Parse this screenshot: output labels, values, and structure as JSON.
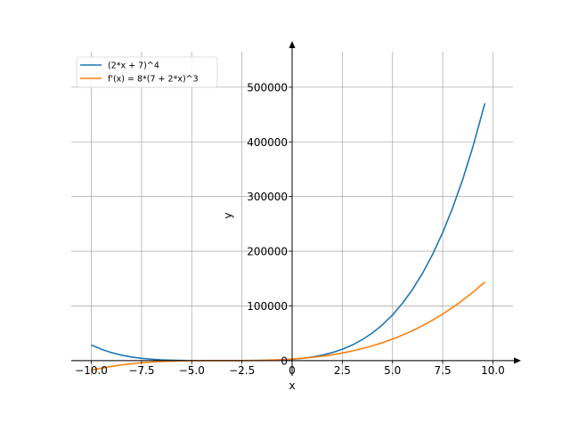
{
  "chart_data": {
    "type": "line",
    "xlabel": "x",
    "ylabel": "y",
    "xlim": [
      -11,
      11
    ],
    "ylim": [
      -28000,
      565000
    ],
    "grid": true,
    "legend_position": "top-left",
    "x_ticks": [
      -10,
      -7.5,
      -5,
      -2.5,
      0,
      2.5,
      5,
      7.5,
      10
    ],
    "x_tick_labels": [
      "−10.0",
      "−7.5",
      "−5.0",
      "−2.5",
      "0",
      "2.5",
      "5.0",
      "7.5",
      "10.0"
    ],
    "y_ticks": [
      0,
      100000,
      200000,
      300000,
      400000,
      500000
    ],
    "y_tick_labels": [
      "0",
      "100000",
      "200000",
      "300000",
      "400000",
      "500000"
    ],
    "series": [
      {
        "name": "(2*x + 7)^4",
        "color": "#1f77b4",
        "expression": "(2*x + 7)^4",
        "x": [
          -10,
          -9.5,
          -9,
          -8.5,
          -8,
          -7.5,
          -7,
          -6.5,
          -6,
          -5.5,
          -5,
          -4.5,
          -4,
          -3.5,
          -3,
          -2.5,
          -2,
          -1.5,
          -1,
          -0.5,
          0,
          0.5,
          1,
          1.5,
          2,
          2.5,
          3,
          3.5,
          4,
          4.5,
          5,
          5.5,
          6,
          6.5,
          7,
          7.5,
          8,
          8.5,
          9,
          9.6
        ],
        "y": [
          28561,
          20736,
          14641,
          10000,
          6561,
          4096,
          2401,
          1296,
          625,
          256,
          81,
          16,
          1,
          0,
          1,
          16,
          81,
          256,
          625,
          1296,
          2401,
          4096,
          6561,
          10000,
          14641,
          20736,
          28561,
          38416,
          50625,
          65536,
          83521,
          104976,
          130321,
          160000,
          194481,
          234256,
          279841,
          331776,
          390625,
          470596
        ]
      },
      {
        "name": "f'(x) = 8*(7 + 2*x)^3",
        "color": "#ff7f0e",
        "expression": "8*(7 + 2*x)^3",
        "x": [
          -10,
          -9.5,
          -9,
          -8.5,
          -8,
          -7.5,
          -7,
          -6.5,
          -6,
          -5.5,
          -5,
          -4.5,
          -4,
          -3.5,
          -3,
          -2.5,
          -2,
          -1.5,
          -1,
          -0.5,
          0,
          0.5,
          1,
          1.5,
          2,
          2.5,
          3,
          3.5,
          4,
          4.5,
          5,
          5.5,
          6,
          6.5,
          7,
          7.5,
          8,
          8.5,
          9,
          9.6
        ],
        "y": [
          -17576,
          -13824,
          -10648,
          -8000,
          -5832,
          -4096,
          -2744,
          -1728,
          -1000,
          -512,
          -216,
          -64,
          -8,
          0,
          8,
          64,
          216,
          512,
          1000,
          1728,
          2744,
          4096,
          5832,
          8000,
          10648,
          13824,
          17576,
          21952,
          27000,
          32768,
          39304,
          46656,
          54872,
          64000,
          74088,
          85184,
          97336,
          110592,
          125000,
          143748
        ]
      }
    ]
  }
}
